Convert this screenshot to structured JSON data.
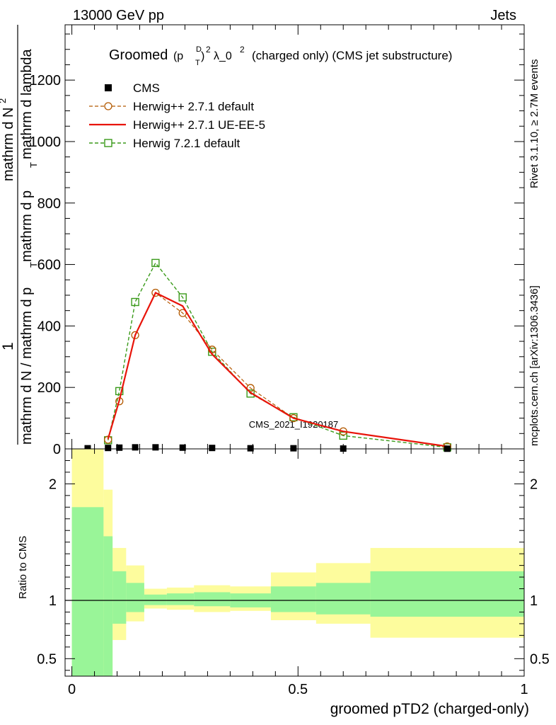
{
  "header": {
    "left": "13000 GeV pp",
    "right": "Jets"
  },
  "side_labels": {
    "rivet": "Rivet 3.1.10, ≥ 2.7M events",
    "mcplots": "mcplots.cern.ch [arXiv:1306.3436]"
  },
  "watermark": "CMS_2021_I1920187",
  "title": {
    "prefix": "Groomed",
    "formula_p": "(p",
    "formula_sub": "T",
    "formula_sup": "D",
    "formula_close": ")",
    "formula_sq": "2",
    "formula_tail": "λ_0",
    "formula_tail_sup": "2",
    "suffix": "(charged only) (CMS jet substructure)"
  },
  "ylabel_top": {
    "numerator": "1",
    "denominator": "mathrm d N / mathrm d p",
    "denominator_sub": "T",
    "part2": "mathrm d N",
    "part2_sup": "2",
    "part3": "mathrm d p",
    "part3_sub": "T",
    "part4": "mathrm d lambda"
  },
  "ylabel_bottom": "Ratio to CMS",
  "xlabel": "groomed pTD2 (charged-only)",
  "legend": [
    {
      "label": "CMS",
      "color": "#000000",
      "style": "square"
    },
    {
      "label": "Herwig++ 2.7.1 default",
      "color": "#b35900",
      "style": "circle-dashed"
    },
    {
      "label": "Herwig++ 2.7.1 UE-EE-5",
      "color": "#e8140a",
      "style": "solid"
    },
    {
      "label": "Herwig 7.2.1 default",
      "color": "#3a9a1a",
      "style": "square-dashed"
    }
  ],
  "chart_data": {
    "type": "line",
    "x_range": [
      -0.015,
      1.0
    ],
    "top_panel": {
      "ylim": [
        0,
        1380
      ],
      "y_ticks": [
        0,
        200,
        400,
        600,
        800,
        1000,
        1200
      ],
      "cms": {
        "x": [
          0.035,
          0.08,
          0.105,
          0.14,
          0.185,
          0.245,
          0.31,
          0.395,
          0.49,
          0.6,
          0.83
        ],
        "y": [
          2,
          3,
          4,
          5,
          5,
          4,
          3,
          2,
          2,
          1,
          0.5
        ]
      },
      "series": [
        {
          "name": "Herwig++ 2.7.1 default",
          "x": [
            0.08,
            0.105,
            0.14,
            0.185,
            0.245,
            0.31,
            0.395,
            0.49,
            0.6,
            0.83
          ],
          "y": [
            30,
            155,
            370,
            508,
            442,
            323,
            198,
            100,
            57,
            8
          ]
        },
        {
          "name": "Herwig++ 2.7.1 UE-EE-5",
          "x": [
            0.08,
            0.105,
            0.14,
            0.185,
            0.245,
            0.31,
            0.395,
            0.49,
            0.6,
            0.83
          ],
          "y": [
            32,
            158,
            370,
            508,
            465,
            308,
            183,
            100,
            57,
            8
          ]
        },
        {
          "name": "Herwig 7.2.1 default",
          "x": [
            0.08,
            0.105,
            0.14,
            0.185,
            0.245,
            0.31,
            0.395,
            0.49,
            0.6,
            0.83
          ],
          "y": [
            28,
            188,
            478,
            605,
            493,
            316,
            180,
            103,
            43,
            5
          ]
        }
      ]
    },
    "ratio_panel": {
      "ylim": [
        0.35,
        2.3
      ],
      "y_ticks": [
        0.5,
        1,
        2
      ],
      "bins": [
        {
          "x0": 0.0,
          "x1": 0.07,
          "g_lo": 0.35,
          "g_hi": 1.8,
          "y_lo": 0.35,
          "y_hi": 2.3
        },
        {
          "x0": 0.07,
          "x1": 0.09,
          "g_lo": 0.35,
          "g_hi": 1.55,
          "y_lo": 0.35,
          "y_hi": 1.95
        },
        {
          "x0": 0.09,
          "x1": 0.12,
          "g_lo": 0.8,
          "g_hi": 1.25,
          "y_lo": 0.66,
          "y_hi": 1.45
        },
        {
          "x0": 0.12,
          "x1": 0.16,
          "g_lo": 0.9,
          "g_hi": 1.15,
          "y_lo": 0.82,
          "y_hi": 1.3
        },
        {
          "x0": 0.16,
          "x1": 0.21,
          "g_lo": 0.96,
          "g_hi": 1.05,
          "y_lo": 0.93,
          "y_hi": 1.1
        },
        {
          "x0": 0.21,
          "x1": 0.27,
          "g_lo": 0.96,
          "g_hi": 1.06,
          "y_lo": 0.92,
          "y_hi": 1.11
        },
        {
          "x0": 0.27,
          "x1": 0.35,
          "g_lo": 0.95,
          "g_hi": 1.07,
          "y_lo": 0.9,
          "y_hi": 1.13
        },
        {
          "x0": 0.35,
          "x1": 0.44,
          "g_lo": 0.94,
          "g_hi": 1.06,
          "y_lo": 0.91,
          "y_hi": 1.12
        },
        {
          "x0": 0.44,
          "x1": 0.54,
          "g_lo": 0.9,
          "g_hi": 1.12,
          "y_lo": 0.83,
          "y_hi": 1.24
        },
        {
          "x0": 0.54,
          "x1": 0.66,
          "g_lo": 0.88,
          "g_hi": 1.15,
          "y_lo": 0.8,
          "y_hi": 1.32
        },
        {
          "x0": 0.66,
          "x1": 1.0,
          "g_lo": 0.86,
          "g_hi": 1.25,
          "y_lo": 0.68,
          "y_hi": 1.45
        }
      ]
    },
    "x_ticks": [
      0,
      0.5,
      1
    ],
    "x_tick_labels": [
      "0",
      "0.5",
      "1"
    ],
    "colors": {
      "band_green": "#99f598",
      "band_yellow": "#fdfc9d"
    }
  }
}
